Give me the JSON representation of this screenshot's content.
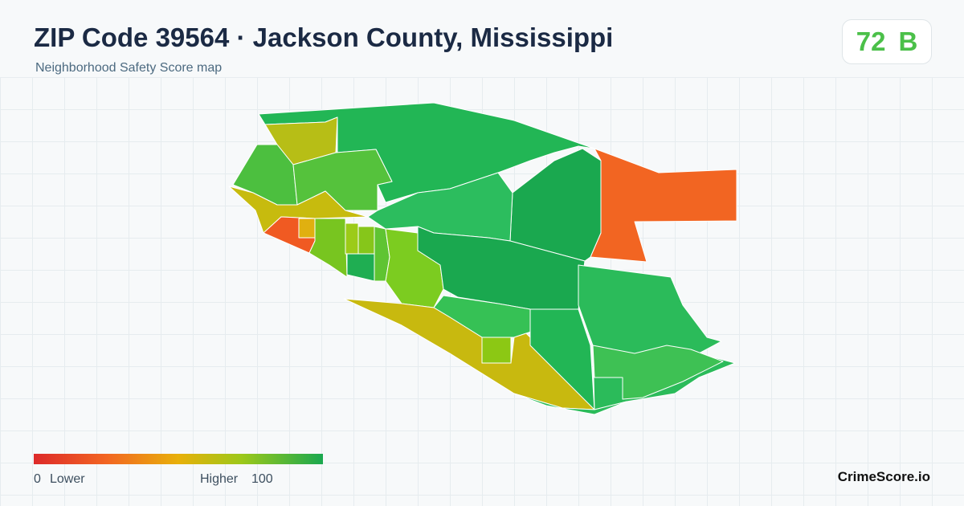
{
  "header": {
    "title": "ZIP Code 39564 · Jackson County, Mississippi",
    "subtitle": "Neighborhood Safety Score map"
  },
  "badge": {
    "score": "72",
    "grade": "B"
  },
  "legend": {
    "min": "0",
    "low_label": "Lower",
    "high_label": "Higher",
    "max": "100"
  },
  "footer": {
    "brand": "CrimeScore.io"
  }
}
